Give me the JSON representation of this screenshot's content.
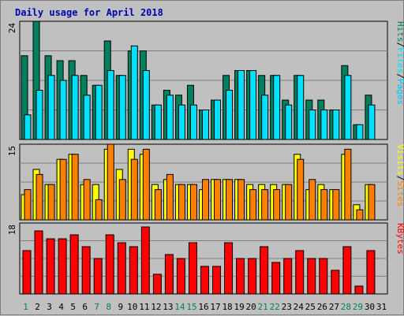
{
  "title": "Daily usage for April 2018",
  "colors": {
    "hits": "#00805c",
    "files": "#00e0ff",
    "pages": "#00c0ff",
    "visits": "#ffff00",
    "sites": "#ff8000",
    "kbytes": "#ff0000",
    "title": "#0000b4",
    "weekend_day": "#00805c",
    "weekday": "#000000"
  },
  "chart_data": [
    {
      "type": "bar",
      "panel": "hits",
      "ymax_label": "24",
      "ylim": [
        0,
        24
      ],
      "legend": [
        {
          "label": "Pages",
          "key": "pages"
        },
        {
          "sep": "/"
        },
        {
          "label": "Files",
          "key": "files"
        },
        {
          "sep": "/"
        },
        {
          "label": "Hits",
          "key": "hits"
        }
      ],
      "series": [
        {
          "name": "Hits",
          "color_key": "hits",
          "values": [
            17,
            24,
            17,
            16,
            16,
            13,
            11,
            20,
            13,
            18,
            18,
            7,
            10,
            9,
            11,
            6,
            8,
            13,
            14,
            14,
            13,
            13,
            8,
            13,
            8,
            8,
            6,
            15,
            3,
            9,
            0
          ]
        },
        {
          "name": "Files",
          "color_key": "files",
          "values": [
            5,
            10,
            13,
            12,
            13,
            9,
            11,
            14,
            13,
            19,
            14,
            7,
            9,
            7,
            7,
            6,
            8,
            10,
            14,
            14,
            9,
            13,
            7,
            13,
            6,
            6,
            6,
            13,
            3,
            7,
            0
          ]
        }
      ]
    },
    {
      "type": "bar",
      "panel": "visits",
      "ymax_label": "15",
      "ylim": [
        0,
        15
      ],
      "legend": [
        {
          "label": "Sites",
          "key": "sites"
        },
        {
          "sep": "/"
        },
        {
          "label": "Visits",
          "key": "visits"
        }
      ],
      "series": [
        {
          "name": "Visits",
          "color_key": "visits",
          "values": [
            5,
            10,
            7,
            12,
            13,
            7,
            7,
            14,
            10,
            14,
            13,
            7,
            8,
            7,
            7,
            6,
            8,
            8,
            8,
            7,
            7,
            7,
            7,
            13,
            6,
            7,
            6,
            13,
            3,
            7,
            0
          ]
        },
        {
          "name": "Sites",
          "color_key": "sites",
          "values": [
            6,
            9,
            7,
            12,
            13,
            8,
            4,
            15,
            8,
            12,
            14,
            6,
            9,
            7,
            7,
            8,
            8,
            8,
            8,
            6,
            6,
            6,
            7,
            12,
            8,
            6,
            6,
            14,
            2,
            7,
            0
          ]
        }
      ]
    },
    {
      "type": "bar",
      "panel": "kbytes",
      "ymax_label": "18",
      "ylim": [
        0,
        18
      ],
      "legend": [
        {
          "label": "KBytes",
          "key": "kbytes"
        }
      ],
      "series": [
        {
          "name": "KBytes",
          "color_key": "kbytes",
          "values": [
            11,
            16,
            14,
            14,
            15,
            12,
            9,
            15,
            13,
            12,
            17,
            5,
            10,
            9,
            13,
            7,
            7,
            13,
            9,
            9,
            12,
            8,
            9,
            11,
            9,
            9,
            6,
            12,
            2,
            11,
            0
          ]
        }
      ]
    }
  ],
  "x_labels": [
    "1",
    "2",
    "3",
    "4",
    "5",
    "6",
    "7",
    "8",
    "9",
    "10",
    "11",
    "12",
    "13",
    "14",
    "15",
    "16",
    "17",
    "18",
    "19",
    "20",
    "21",
    "22",
    "23",
    "24",
    "25",
    "26",
    "27",
    "28",
    "29",
    "30",
    "31"
  ],
  "weekend_days": [
    1,
    7,
    8,
    14,
    15,
    21,
    22,
    28,
    29
  ]
}
